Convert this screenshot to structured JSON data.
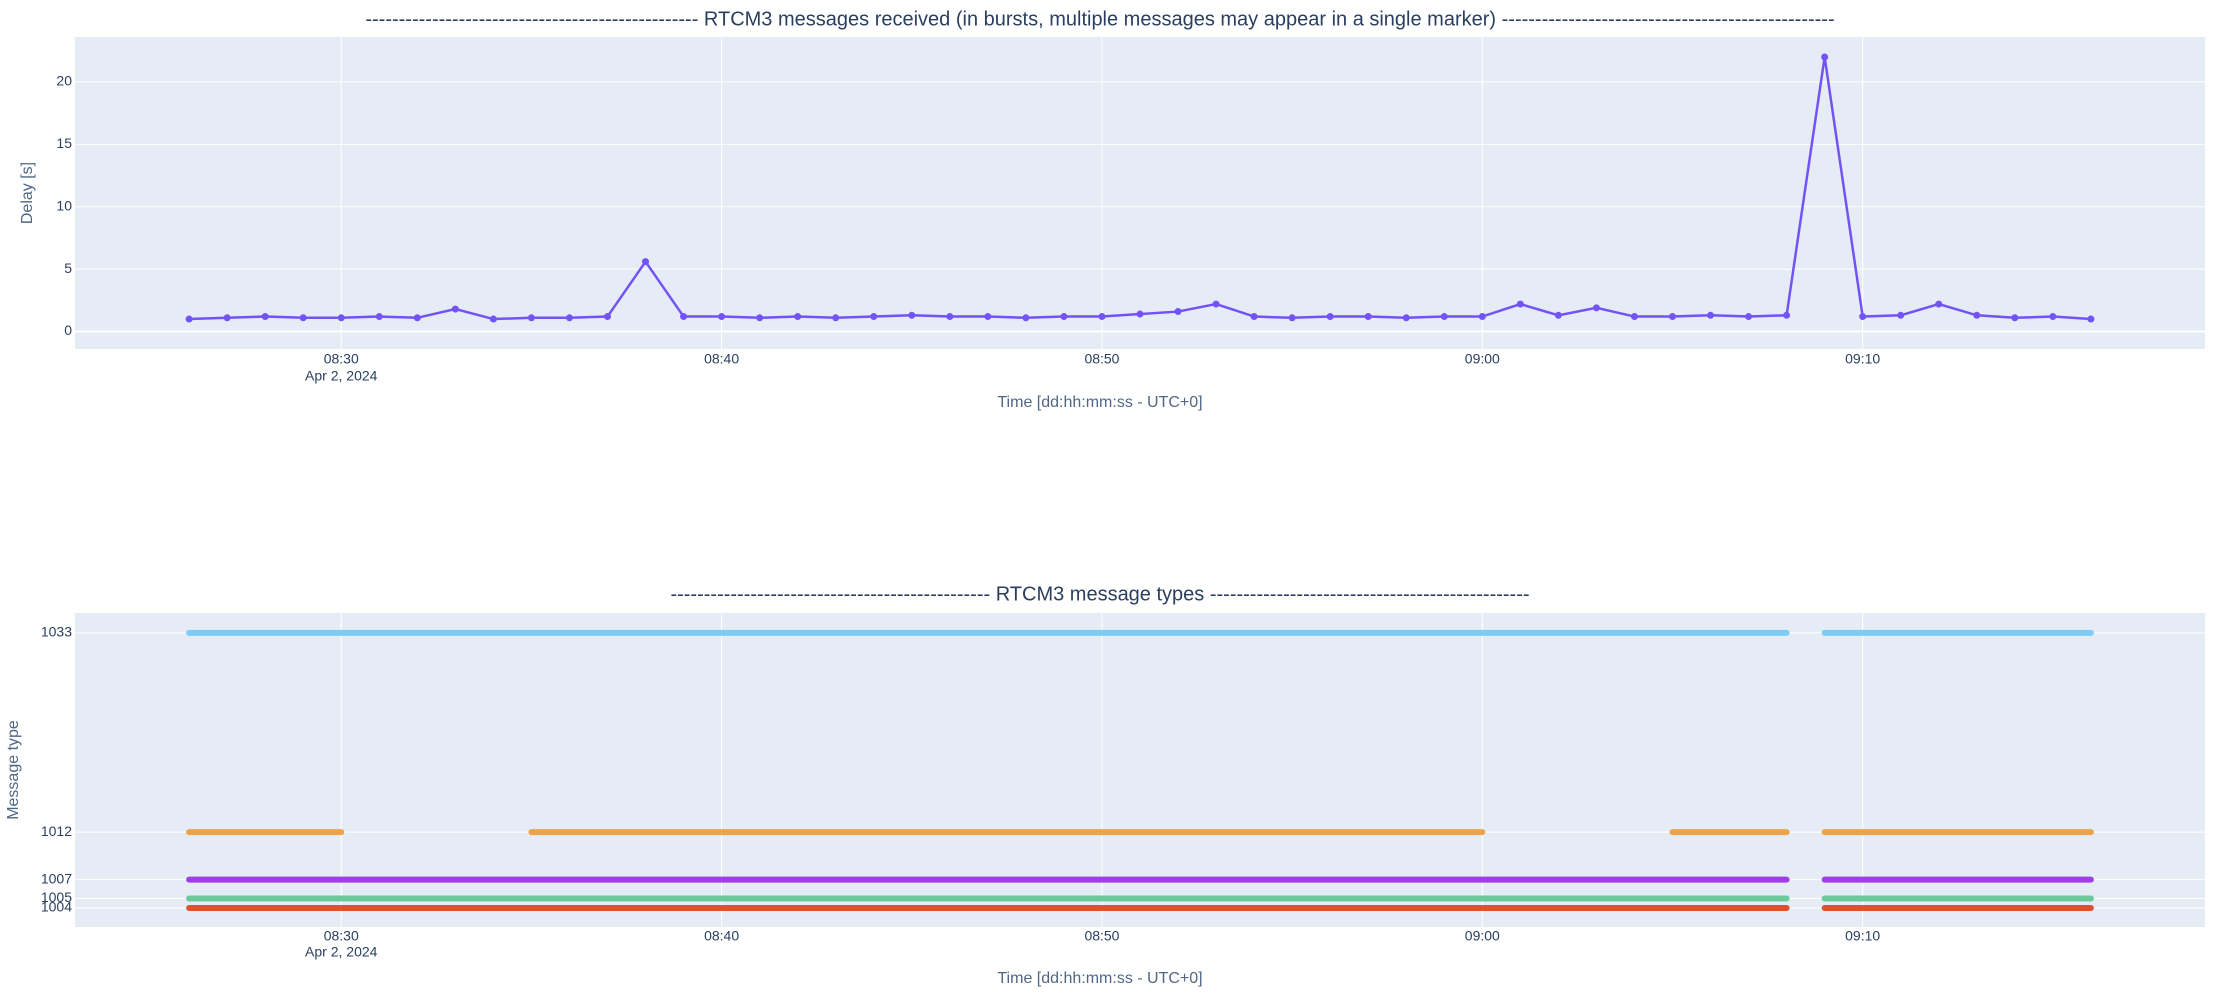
{
  "chart_data": [
    {
      "type": "line",
      "title": "--------------------------------------------------  RTCM3 messages received (in bursts, multiple messages may appear in a single marker)  --------------------------------------------------",
      "xlabel": "Time [dd:hh:mm:ss - UTC+0]",
      "ylabel": "Delay [s]",
      "xlim": [
        "08:23",
        "09:19"
      ],
      "xticks": [
        "08:30",
        "08:40",
        "08:50",
        "09:00",
        "09:10"
      ],
      "xtick_date": "Apr 2, 2024",
      "ylim": [
        -1.4,
        23.6
      ],
      "yticks": [
        0,
        5,
        10,
        15,
        20
      ],
      "grid": true,
      "series": [
        {
          "color": "#7352f7",
          "x": [
            "08:26",
            "08:27",
            "08:28",
            "08:29",
            "08:30",
            "08:31",
            "08:32",
            "08:33",
            "08:34",
            "08:35",
            "08:36",
            "08:37",
            "08:38",
            "08:39",
            "08:40",
            "08:41",
            "08:42",
            "08:43",
            "08:44",
            "08:45",
            "08:46",
            "08:47",
            "08:48",
            "08:49",
            "08:50",
            "08:51",
            "08:52",
            "08:53",
            "08:54",
            "08:55",
            "08:56",
            "08:57",
            "08:58",
            "08:59",
            "09:00",
            "09:01",
            "09:02",
            "09:03",
            "09:04",
            "09:05",
            "09:06",
            "09:07",
            "09:08",
            "09:09",
            "09:10",
            "09:11",
            "09:12",
            "09:13",
            "09:14",
            "09:15",
            "09:16"
          ],
          "values": [
            1.0,
            1.1,
            1.2,
            1.1,
            1.1,
            1.2,
            1.1,
            1.8,
            1.0,
            1.1,
            1.1,
            1.2,
            5.6,
            1.2,
            1.2,
            1.1,
            1.2,
            1.1,
            1.2,
            1.3,
            1.2,
            1.2,
            1.1,
            1.2,
            1.2,
            1.4,
            1.6,
            2.2,
            1.2,
            1.1,
            1.2,
            1.2,
            1.1,
            1.2,
            1.2,
            2.2,
            1.3,
            1.9,
            1.2,
            1.2,
            1.3,
            1.2,
            1.3,
            22,
            1.2,
            1.3,
            2.2,
            1.3,
            1.1,
            1.2,
            1.0
          ]
        }
      ]
    },
    {
      "type": "line",
      "title": "------------------------------------------------  RTCM3 message types  ------------------------------------------------",
      "xlabel": "Time [dd:hh:mm:ss - UTC+0]",
      "ylabel": "Message type",
      "xlim": [
        "08:23",
        "09:19"
      ],
      "xticks": [
        "08:30",
        "08:40",
        "08:50",
        "09:00",
        "09:10"
      ],
      "xtick_date": "Apr 2, 2024",
      "ylim": [
        1002,
        1035.1
      ],
      "yticks": [
        1004,
        1005,
        1007,
        1012,
        1033
      ],
      "grid": true,
      "series": [
        {
          "color": "#7ccdf5",
          "x": [
            "08:26",
            "09:08",
            "09:09",
            "09:09",
            "09:16"
          ],
          "values": [
            1033,
            1033,
            null,
            1033,
            1033
          ]
        },
        {
          "color": "#eda349",
          "x": [
            "08:26",
            "08:30",
            "08:33",
            "08:35",
            "09:00",
            "09:03",
            "09:05",
            "09:08",
            "09:09",
            "09:09",
            "09:16"
          ],
          "values": [
            1012,
            1012,
            null,
            1012,
            1012,
            null,
            1012,
            1012,
            null,
            1012,
            1012
          ]
        },
        {
          "color": "#a23ee8",
          "x": [
            "08:26",
            "09:08",
            "09:09",
            "09:09",
            "09:16"
          ],
          "values": [
            1007,
            1007,
            null,
            1007,
            1007
          ]
        },
        {
          "color": "#6cc99a",
          "x": [
            "08:26",
            "09:08",
            "09:09",
            "09:09",
            "09:16"
          ],
          "values": [
            1005,
            1005,
            null,
            1005,
            1005
          ]
        },
        {
          "color": "#e0502f",
          "x": [
            "08:26",
            "09:08",
            "09:09",
            "09:09",
            "09:16"
          ],
          "values": [
            1004,
            1004,
            null,
            1004,
            1004
          ]
        }
      ]
    }
  ]
}
